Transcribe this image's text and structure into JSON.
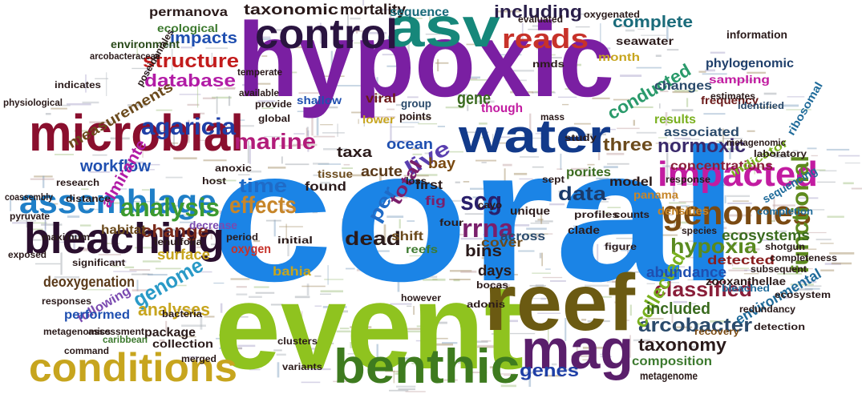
{
  "cloud": {
    "words": [
      {
        "text": "coral",
        "color": "#1b84e6"
      },
      {
        "text": "hypoxic",
        "color": "#7a1fa2"
      },
      {
        "text": "event",
        "color": "#8fc31f"
      },
      {
        "text": "reef",
        "color": "#6b5a12"
      },
      {
        "text": "microbial",
        "color": "#8a0f2e"
      },
      {
        "text": "asv",
        "color": "#16877a"
      },
      {
        "text": "control",
        "color": "#2a1440"
      },
      {
        "text": "water",
        "color": "#123a8a"
      },
      {
        "text": "mag",
        "color": "#5a1f6b"
      },
      {
        "text": "benthic",
        "color": "#3e7b1f"
      },
      {
        "text": "conditions",
        "color": "#c7a51e"
      },
      {
        "text": "bleaching",
        "color": "#2a0f2e"
      },
      {
        "text": "impacted",
        "color": "#c21ca1"
      },
      {
        "text": "assemblage",
        "color": "#1f7fc7"
      },
      {
        "text": "genomes",
        "color": "#7a4a12"
      },
      {
        "text": "reads",
        "color": "#c7322a"
      },
      {
        "text": "agaricia",
        "color": "#1f3fa6"
      },
      {
        "text": "analysis",
        "color": "#3d9a2f"
      },
      {
        "text": "effects",
        "color": "#c7862a"
      },
      {
        "text": "functional",
        "color": "#5e8a1f"
      },
      {
        "text": "structure",
        "color": "#c21c1c"
      },
      {
        "text": "database",
        "color": "#b21ca6"
      },
      {
        "text": "impacts",
        "color": "#1f4fb0"
      },
      {
        "text": "measurements",
        "color": "#6b4a1c"
      },
      {
        "text": "complete",
        "color": "#1a6b7a"
      },
      {
        "text": "including",
        "color": "#2a1f4a"
      },
      {
        "text": "hypoxia",
        "color": "#5a8a1f"
      },
      {
        "text": "normoxic",
        "color": "#3a2a6b"
      },
      {
        "text": "arcobacter",
        "color": "#2a4a6b"
      },
      {
        "text": "classified",
        "color": "#8a1f3a"
      },
      {
        "text": "marine",
        "color": "#b21c7a"
      },
      {
        "text": "rrna",
        "color": "#7a1f6b"
      },
      {
        "text": "scg",
        "color": "#2a1f6b"
      },
      {
        "text": "dead",
        "color": "#2a1a1a"
      },
      {
        "text": "live",
        "color": "#5a3fb0"
      },
      {
        "text": "time",
        "color": "#1f6bc7"
      },
      {
        "text": "data",
        "color": "#1a3a6b"
      },
      {
        "text": "three",
        "color": "#6b4a1c"
      },
      {
        "text": "genome",
        "color": "#2a9ac7"
      },
      {
        "text": "taxonomy",
        "color": "#2a1a1a"
      },
      {
        "text": "genes",
        "color": "#1f3fa6"
      },
      {
        "text": "change",
        "color": "#7a2a1a"
      },
      {
        "text": "collected",
        "color": "#7ab01f"
      },
      {
        "text": "ecosystems",
        "color": "#3a6b1f"
      },
      {
        "text": "environmental",
        "color": "#1f6b9a"
      },
      {
        "text": "taxonomic",
        "color": "#2a1a1a"
      },
      {
        "text": "mortality",
        "color": "#2a1a1a"
      },
      {
        "text": "analyses",
        "color": "#c7a51e"
      },
      {
        "text": "workflow",
        "color": "#1f4fb0"
      },
      {
        "text": "almirante",
        "color": "#b21ca6"
      },
      {
        "text": "conducted",
        "color": "#2a9a6b"
      },
      {
        "text": "abundance",
        "color": "#1f4fb0"
      },
      {
        "text": "concentrations",
        "color": "#8a1f3a"
      },
      {
        "text": "bins",
        "color": "#2a1a1a"
      },
      {
        "text": "sequence",
        "color": "#1a6b7a"
      },
      {
        "text": "phylogenomic",
        "color": "#1f3f6b"
      },
      {
        "text": "ecological",
        "color": "#3d7a2f"
      },
      {
        "text": "habitat",
        "color": "#6b4a1c"
      },
      {
        "text": "detected",
        "color": "#8a1f1f"
      },
      {
        "text": "associated",
        "color": "#2a4a6b"
      },
      {
        "text": "cover",
        "color": "#6b4a1c"
      },
      {
        "text": "across",
        "color": "#2a4a6b"
      },
      {
        "text": "porites",
        "color": "#3a6b1f"
      },
      {
        "text": "ocean",
        "color": "#1f4fb0"
      },
      {
        "text": "total",
        "color": "#7a1f6b"
      },
      {
        "text": "per",
        "color": "#1f6bc7"
      },
      {
        "text": "found",
        "color": "#2a1a1a"
      },
      {
        "text": "acute",
        "color": "#5a3a1a"
      },
      {
        "text": "taxa",
        "color": "#2a1a1a"
      },
      {
        "text": "surface",
        "color": "#c7a51e"
      },
      {
        "text": "deoxygenation",
        "color": "#5a3a1a"
      },
      {
        "text": "permanova",
        "color": "#2a1a1a"
      },
      {
        "text": "environment",
        "color": "#2a4a1a"
      },
      {
        "text": "seawater",
        "color": "#2a1a1a"
      },
      {
        "text": "indicator",
        "color": "#7ab01f"
      },
      {
        "text": "changes",
        "color": "#2a4a6b"
      },
      {
        "text": "sampling",
        "color": "#c21ca1"
      },
      {
        "text": "frequency",
        "color": "#6b1a1a"
      },
      {
        "text": "month",
        "color": "#c7a51e"
      },
      {
        "text": "included",
        "color": "#3a6b1f"
      },
      {
        "text": "model",
        "color": "#2a1a1a"
      },
      {
        "text": "panama",
        "color": "#c7862a"
      },
      {
        "text": "species",
        "color": "#2a1a1a"
      },
      {
        "text": "zooxanthellae",
        "color": "#2a1a1a"
      },
      {
        "text": "composition",
        "color": "#3d7a2f"
      },
      {
        "text": "metagenome",
        "color": "#2a1a1a"
      },
      {
        "text": "gene",
        "color": "#3a6b1f"
      },
      {
        "text": "oxygen",
        "color": "#c7322a"
      },
      {
        "text": "days",
        "color": "#2a1a1a"
      },
      {
        "text": "bahia",
        "color": "#c7a51e"
      },
      {
        "text": "following",
        "color": "#7a4ab0"
      },
      {
        "text": "performed",
        "color": "#1f4fb0"
      },
      {
        "text": "package",
        "color": "#2a1a1a"
      },
      {
        "text": "collection",
        "color": "#2a1a1a"
      },
      {
        "text": "caribbean",
        "color": "#3d7a2f"
      },
      {
        "text": "command",
        "color": "#2a1a1a"
      },
      {
        "text": "first",
        "color": "#2a1a1a"
      },
      {
        "text": "shift",
        "color": "#6b4a1c"
      },
      {
        "text": "fig",
        "color": "#7a1f6b"
      },
      {
        "text": "bay",
        "color": "#7a4a12"
      },
      {
        "text": "reefs",
        "color": "#3d7a2f"
      },
      {
        "text": "though",
        "color": "#c21ca1"
      },
      {
        "text": "lower",
        "color": "#c7a51e"
      },
      {
        "text": "points",
        "color": "#2a1a1a"
      },
      {
        "text": "group",
        "color": "#2a4a6b"
      },
      {
        "text": "densities",
        "color": "#c7862a"
      },
      {
        "text": "completion",
        "color": "#1f6b9a"
      },
      {
        "text": "bleached",
        "color": "#1f6b9a"
      },
      {
        "text": "recovery",
        "color": "#7a4a12"
      },
      {
        "text": "tissue",
        "color": "#6b4a1c"
      },
      {
        "text": "ribosomal",
        "color": "#1f6b9a"
      },
      {
        "text": "information",
        "color": "#2a1a1a"
      },
      {
        "text": "results",
        "color": "#7ab01f"
      },
      {
        "text": "sequencing",
        "color": "#1f6b9a"
      },
      {
        "text": "identified",
        "color": "#2a4a6b"
      },
      {
        "text": "response",
        "color": "#2a1a1a"
      },
      {
        "text": "research",
        "color": "#2a1a1a"
      },
      {
        "text": "distance",
        "color": "#2a1a1a"
      },
      {
        "text": "indicates",
        "color": "#2a1a1a"
      },
      {
        "text": "maximum",
        "color": "#2a1a1a"
      },
      {
        "text": "significant",
        "color": "#2a1a1a"
      },
      {
        "text": "clusters",
        "color": "#2a1a1a"
      },
      {
        "text": "however",
        "color": "#2a1a1a"
      },
      {
        "text": "global",
        "color": "#2a1a1a"
      },
      {
        "text": "provide",
        "color": "#2a1a1a"
      },
      {
        "text": "available",
        "color": "#2a1a1a"
      },
      {
        "text": "period",
        "color": "#2a1a1a"
      },
      {
        "text": "decrease",
        "color": "#7a4ab0"
      },
      {
        "text": "pyruvate",
        "color": "#2a1a1a"
      },
      {
        "text": "responses",
        "color": "#2a1a1a"
      },
      {
        "text": "assessment",
        "color": "#2a1a1a"
      },
      {
        "text": "tenulfolia",
        "color": "#2a1a1a"
      },
      {
        "text": "redundancy",
        "color": "#2a1a1a"
      },
      {
        "text": "detection",
        "color": "#2a1a1a"
      },
      {
        "text": "viral",
        "color": "#6b1a1a"
      },
      {
        "text": "anoxic",
        "color": "#2a1a1a"
      },
      {
        "text": "shallow",
        "color": "#1f4fb0"
      },
      {
        "text": "study",
        "color": "#2a1a1a"
      },
      {
        "text": "profiles",
        "color": "#2a1a1a"
      },
      {
        "text": "counts",
        "color": "#2a1a1a"
      },
      {
        "text": "laboratory",
        "color": "#2a1a1a"
      },
      {
        "text": "completeness",
        "color": "#2a1a1a"
      },
      {
        "text": "initial",
        "color": "#2a1a1a"
      },
      {
        "text": "coassembly",
        "color": "#2a1a1a"
      },
      {
        "text": "arcobacteraceae",
        "color": "#2a1a1a"
      },
      {
        "text": "poseidoniales",
        "color": "#2a1a1a"
      },
      {
        "text": "physiological",
        "color": "#2a1a1a"
      },
      {
        "text": "clade",
        "color": "#2a1a1a"
      },
      {
        "text": "unique",
        "color": "#2a1a1a"
      },
      {
        "text": "host",
        "color": "#2a1a1a"
      },
      {
        "text": "bacteria",
        "color": "#2a1a1a"
      },
      {
        "text": "nmds",
        "color": "#2a1a1a"
      },
      {
        "text": "evaluated",
        "color": "#2a1a1a"
      },
      {
        "text": "oxygenated",
        "color": "#2a1a1a"
      },
      {
        "text": "estimates",
        "color": "#2a1a1a"
      },
      {
        "text": "mass",
        "color": "#2a1a1a"
      },
      {
        "text": "cayo",
        "color": "#2a1a1a"
      },
      {
        "text": "bocas",
        "color": "#2a1a1a"
      },
      {
        "text": "adonis",
        "color": "#2a1a1a"
      },
      {
        "text": "merged",
        "color": "#2a1a1a"
      },
      {
        "text": "temperate",
        "color": "#2a1a1a"
      },
      {
        "text": "metagenomic",
        "color": "#2a1a1a"
      },
      {
        "text": "figure",
        "color": "#2a1a1a"
      },
      {
        "text": "loss",
        "color": "#2a1a1a"
      },
      {
        "text": "sept",
        "color": "#2a1a1a"
      },
      {
        "text": "four",
        "color": "#2a1a1a"
      },
      {
        "text": "ecosystem",
        "color": "#2a1a1a"
      },
      {
        "text": "metagenomics",
        "color": "#2a1a1a"
      },
      {
        "text": "subsequent",
        "color": "#2a1a1a"
      },
      {
        "text": "shotgun",
        "color": "#2a1a1a"
      },
      {
        "text": "variants",
        "color": "#2a1a1a"
      },
      {
        "text": "exposed",
        "color": "#2a1a1a"
      }
    ]
  }
}
